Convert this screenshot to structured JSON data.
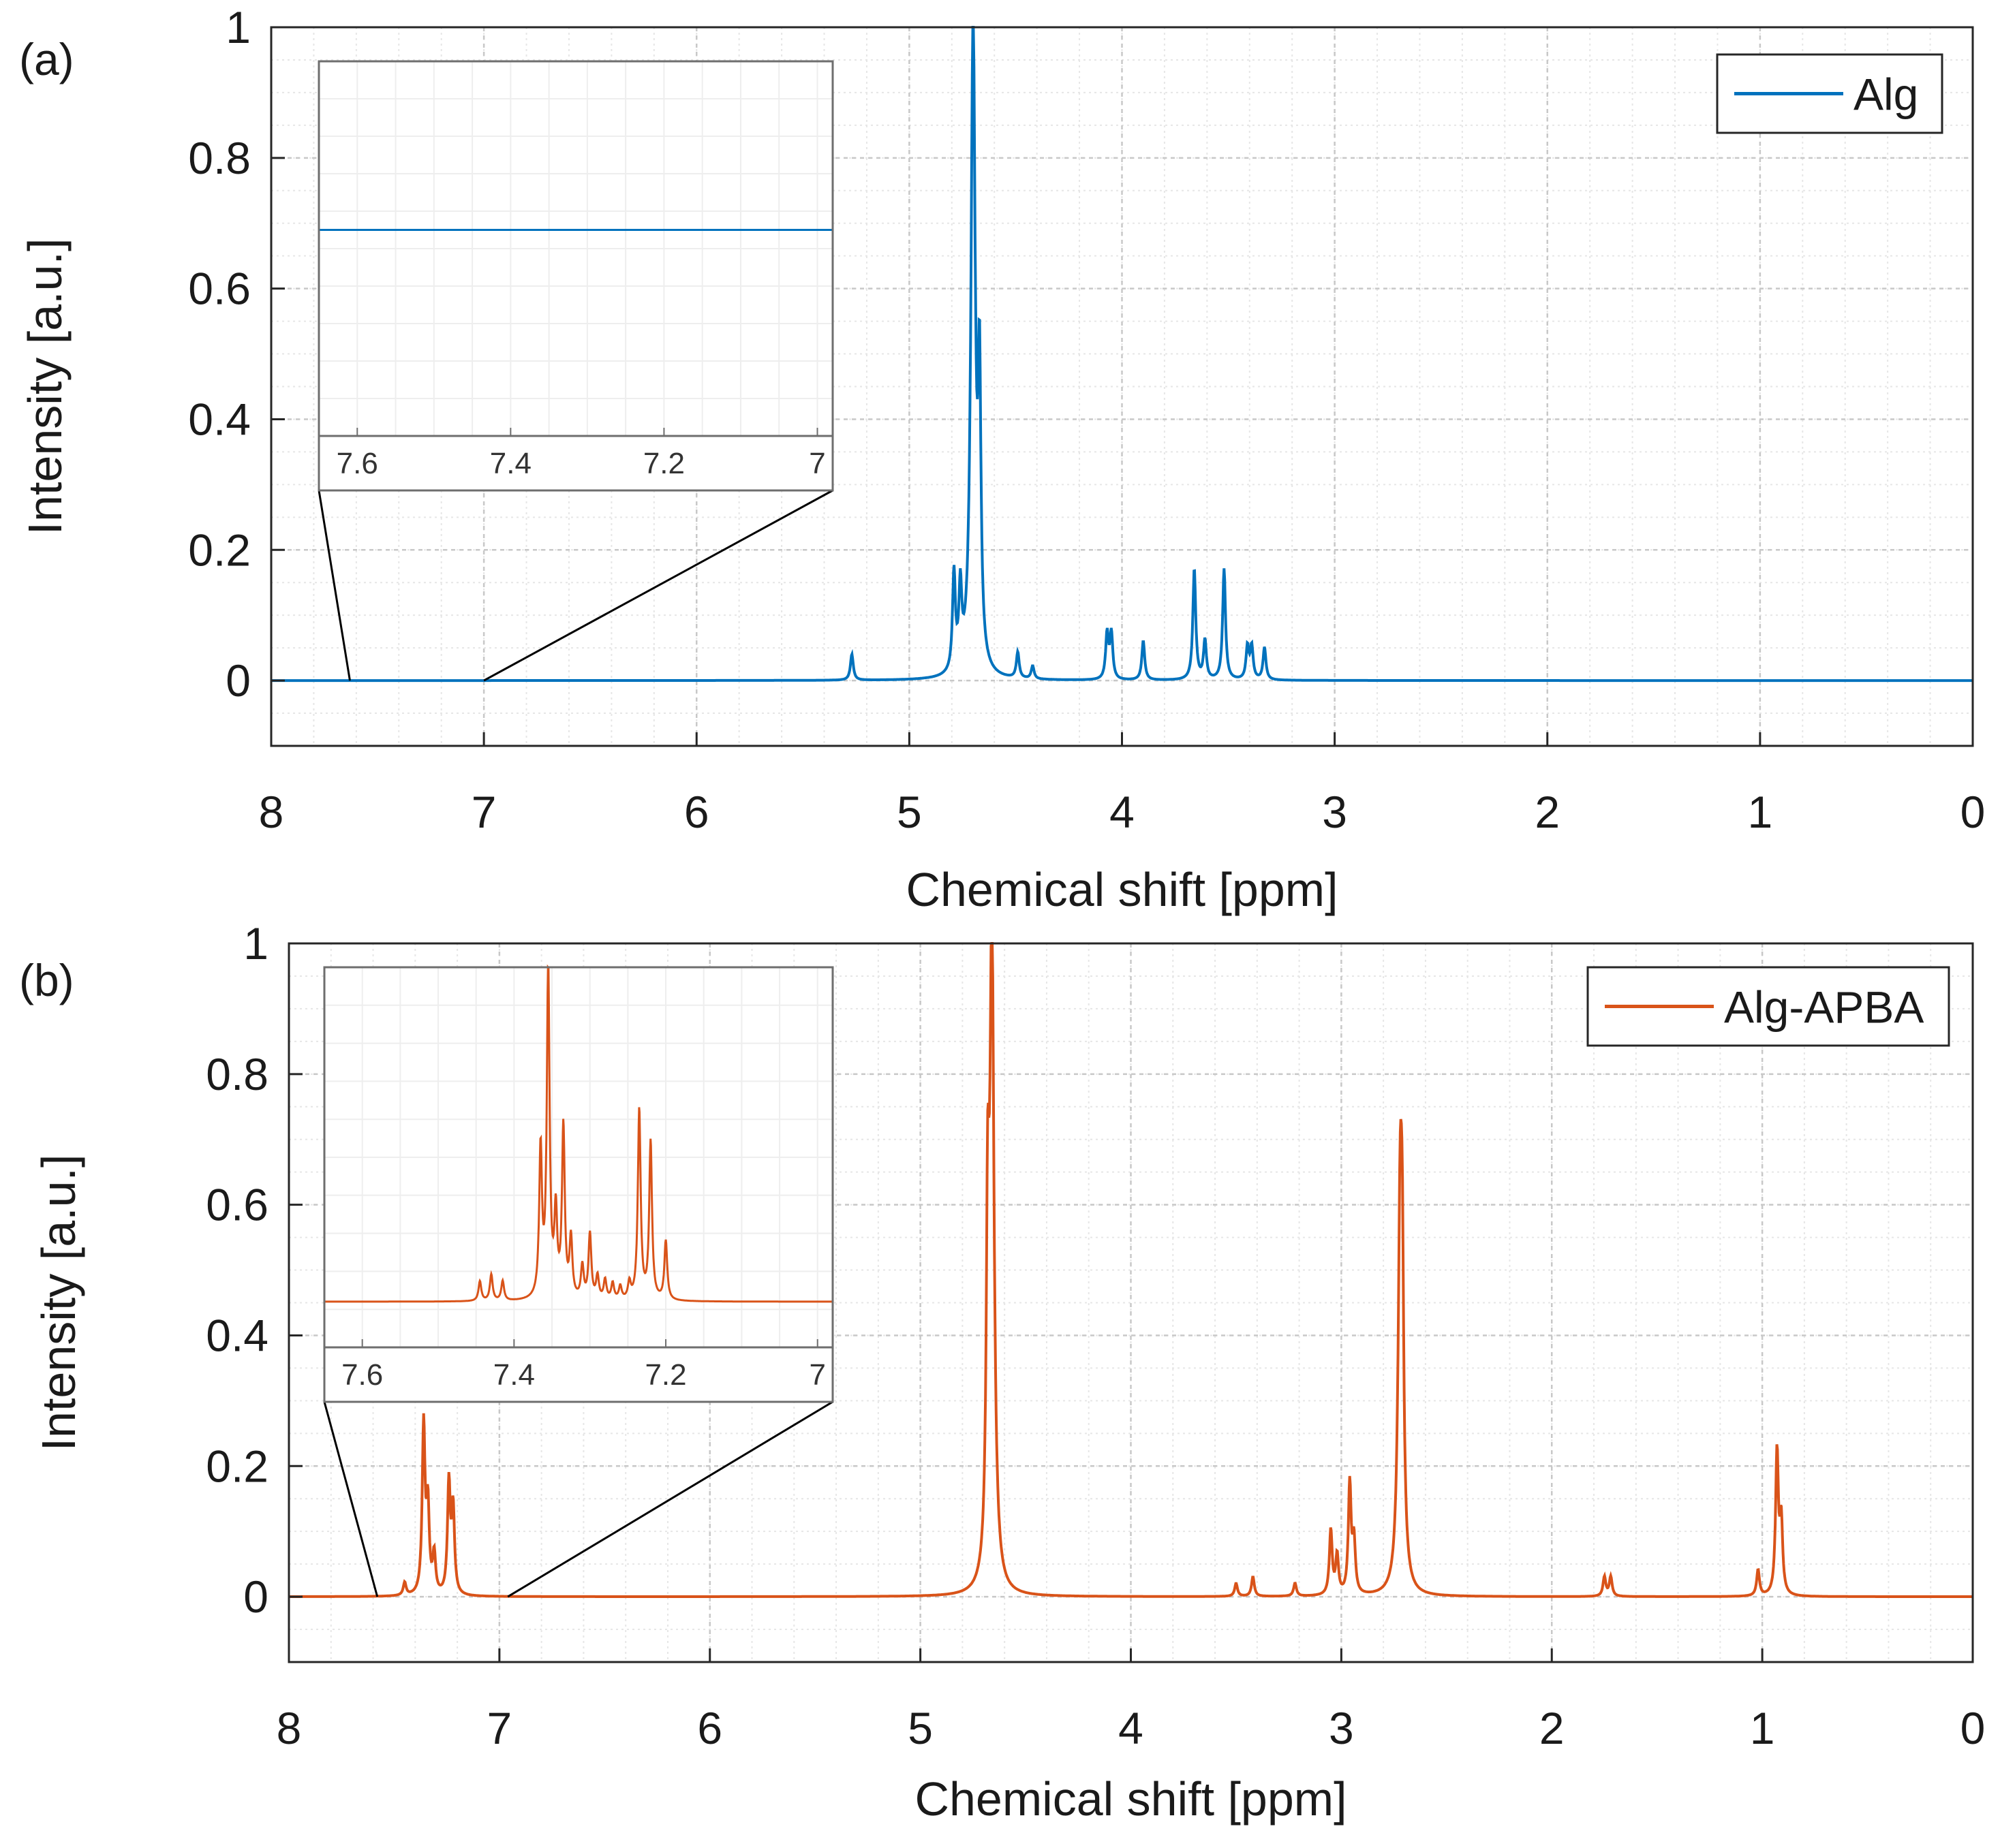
{
  "colors": {
    "alg": "#0072BD",
    "alg_apba": "#D95319",
    "grid": "#d9d9d9",
    "axis": "#262626"
  },
  "panels": [
    {
      "id": "a",
      "label": "(a)",
      "legend": "Alg",
      "inset_legend_series": "Alg",
      "chart_data": {
        "type": "line",
        "title": "",
        "xlabel": "Chemical shift [ppm]",
        "ylabel": "Intensity [a.u.]",
        "xlim": [
          8,
          0
        ],
        "x_reversed": true,
        "ylim": [
          -0.1,
          1
        ],
        "xticks": [
          "8",
          "7",
          "6",
          "5",
          "4",
          "3",
          "2",
          "1",
          "0"
        ],
        "yticks": [
          "0",
          "0.2",
          "0.4",
          "0.6",
          "0.8",
          "1"
        ],
        "grid": true,
        "minor_grid": true,
        "legend_position": "top-right",
        "series": [
          {
            "name": "Alg",
            "color": "#0072BD",
            "baseline": 0,
            "peaks": [
              {
                "x": 5.27,
                "y": 0.04
              },
              {
                "x": 4.79,
                "y": 0.15
              },
              {
                "x": 4.76,
                "y": 0.12
              },
              {
                "x": 4.7,
                "y": 1.0
              },
              {
                "x": 4.67,
                "y": 0.42
              },
              {
                "x": 4.49,
                "y": 0.04
              },
              {
                "x": 4.42,
                "y": 0.02
              },
              {
                "x": 4.07,
                "y": 0.07
              },
              {
                "x": 4.05,
                "y": 0.07
              },
              {
                "x": 3.9,
                "y": 0.06
              },
              {
                "x": 3.66,
                "y": 0.17
              },
              {
                "x": 3.61,
                "y": 0.06
              },
              {
                "x": 3.52,
                "y": 0.17
              },
              {
                "x": 3.41,
                "y": 0.05
              },
              {
                "x": 3.39,
                "y": 0.05
              },
              {
                "x": 3.33,
                "y": 0.05
              }
            ]
          }
        ]
      },
      "inset": {
        "xlim": [
          7.65,
          6.98
        ],
        "xticks": [
          "7.6",
          "7.4",
          "7.2",
          "7"
        ],
        "zoom_range": [
          7.63,
          7.0
        ],
        "inset_ylim": [
          0,
          1
        ],
        "series_baseline": 0.45,
        "peaks": []
      }
    },
    {
      "id": "b",
      "label": "(b)",
      "legend": "Alg-APBA",
      "chart_data": {
        "type": "line",
        "title": "",
        "xlabel": "Chemical shift [ppm]",
        "ylabel": "Intensity [a.u.]",
        "xlim": [
          8,
          0
        ],
        "x_reversed": true,
        "ylim": [
          -0.1,
          1
        ],
        "xticks": [
          "8",
          "7",
          "6",
          "5",
          "4",
          "3",
          "2",
          "1",
          "0"
        ],
        "yticks": [
          "0",
          "0.2",
          "0.4",
          "0.6",
          "0.8",
          "1"
        ],
        "grid": true,
        "minor_grid": true,
        "legend_position": "top-right",
        "series": [
          {
            "name": "Alg-APBA",
            "color": "#D95319",
            "baseline": 0,
            "peaks": [
              {
                "x": 7.45,
                "y": 0.02
              },
              {
                "x": 7.36,
                "y": 0.26
              },
              {
                "x": 7.34,
                "y": 0.13
              },
              {
                "x": 7.31,
                "y": 0.06
              },
              {
                "x": 7.24,
                "y": 0.17
              },
              {
                "x": 7.22,
                "y": 0.13
              },
              {
                "x": 4.68,
                "y": 0.48
              },
              {
                "x": 4.66,
                "y": 1.0
              },
              {
                "x": 3.5,
                "y": 0.02
              },
              {
                "x": 3.42,
                "y": 0.03
              },
              {
                "x": 3.22,
                "y": 0.02
              },
              {
                "x": 3.05,
                "y": 0.1
              },
              {
                "x": 3.02,
                "y": 0.06
              },
              {
                "x": 2.96,
                "y": 0.17
              },
              {
                "x": 2.94,
                "y": 0.08
              },
              {
                "x": 2.72,
                "y": 0.59
              },
              {
                "x": 2.71,
                "y": 0.31
              },
              {
                "x": 1.75,
                "y": 0.03
              },
              {
                "x": 1.72,
                "y": 0.03
              },
              {
                "x": 1.02,
                "y": 0.04
              },
              {
                "x": 0.93,
                "y": 0.22
              },
              {
                "x": 0.91,
                "y": 0.11
              }
            ]
          }
        ]
      },
      "inset": {
        "xlim": [
          7.65,
          6.98
        ],
        "xticks": [
          "7.6",
          "7.4",
          "7.2",
          "7"
        ],
        "zoom_range": [
          7.58,
          6.96
        ],
        "inset_ylim": [
          0,
          1
        ],
        "series_baseline": 0.0,
        "peaks": [
          {
            "x": 7.445,
            "y": 0.06
          },
          {
            "x": 7.43,
            "y": 0.08
          },
          {
            "x": 7.415,
            "y": 0.06
          },
          {
            "x": 7.365,
            "y": 0.45
          },
          {
            "x": 7.355,
            "y": 1.0
          },
          {
            "x": 7.345,
            "y": 0.25
          },
          {
            "x": 7.335,
            "y": 0.52
          },
          {
            "x": 7.325,
            "y": 0.18
          },
          {
            "x": 7.31,
            "y": 0.1
          },
          {
            "x": 7.3,
            "y": 0.2
          },
          {
            "x": 7.29,
            "y": 0.07
          },
          {
            "x": 7.28,
            "y": 0.06
          },
          {
            "x": 7.27,
            "y": 0.05
          },
          {
            "x": 7.26,
            "y": 0.04
          },
          {
            "x": 7.248,
            "y": 0.05
          },
          {
            "x": 7.235,
            "y": 0.58
          },
          {
            "x": 7.22,
            "y": 0.48
          },
          {
            "x": 7.2,
            "y": 0.18
          }
        ]
      }
    }
  ]
}
